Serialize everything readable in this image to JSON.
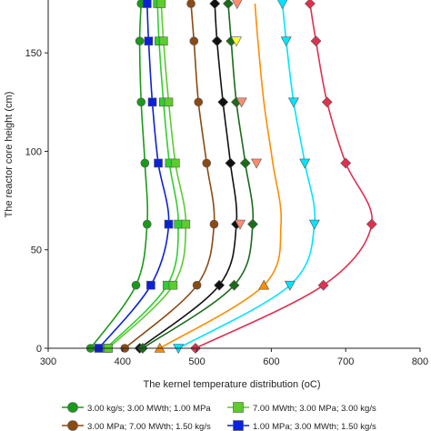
{
  "chart_data": {
    "type": "line",
    "xlabel": "The kernel temperature distribution (oC)",
    "ylabel": "The reactor core height (cm)",
    "xlim": [
      300,
      800
    ],
    "ylim": [
      0,
      175
    ],
    "xticks": [
      "300",
      "400",
      "500",
      "600",
      "700",
      "800"
    ],
    "yticks": [
      "0",
      "50",
      "100",
      "150"
    ],
    "grid": false,
    "legend_position": "bottom",
    "y": [
      0,
      32,
      63,
      94,
      125,
      156,
      175
    ],
    "series": [
      {
        "name": "3.00 kg/s; 3.00 MWth; 1.00 MPa",
        "color": "#1a9a1a",
        "marker": "circle",
        "x": [
          357,
          418,
          433,
          430,
          425,
          423,
          425
        ]
      },
      {
        "name": "",
        "color": "#32cd32",
        "marker": "square",
        "x": [
          378,
          460,
          475,
          463,
          455,
          449,
          447
        ]
      },
      {
        "name": "1.00 MPa; 3.00 MWth; 1.50 kg/s",
        "color": "#0b22d6",
        "marker": "square",
        "x": [
          368,
          438,
          462,
          448,
          440,
          435,
          433
        ]
      },
      {
        "name": "7.00 MWth; 3.00 MPa; 3.00 kg/s",
        "color": "#5ccc2e",
        "marker": "square",
        "x": [
          381,
          468,
          485,
          471,
          462,
          455,
          452
        ]
      },
      {
        "name": "3.00 MPa; 7.00 MWth; 1.50 kg/s",
        "color": "#8b4a14",
        "marker": "circle",
        "x": [
          403,
          500,
          523,
          513,
          502,
          496,
          492
        ]
      },
      {
        "name": "",
        "color": "#111111",
        "marker": "diamond",
        "x": [
          423,
          530,
          553,
          545,
          535,
          527,
          524
        ]
      },
      {
        "name": "",
        "color": "#1a6b1a",
        "marker": "diamond",
        "x": [
          427,
          550,
          575,
          565,
          553,
          546,
          542
        ]
      },
      {
        "name": "",
        "color": "#ff8c00",
        "marker": "triangle",
        "x": [
          450,
          590,
          613,
          602,
          590,
          582,
          578
        ]
      },
      {
        "name": "",
        "color": "#00e5ff",
        "marker": "triangle-down",
        "x": [
          475,
          625,
          658,
          645,
          630,
          620,
          615
        ]
      },
      {
        "name": "",
        "color": "#e03050",
        "marker": "diamond",
        "x": [
          498,
          670,
          735,
          700,
          675,
          660,
          652
        ]
      }
    ],
    "markers_override": [
      {
        "series": 7,
        "index": 2,
        "x": 558,
        "y": 63,
        "marker": "triangle-down",
        "color": "#ff8c70"
      },
      {
        "series": 7,
        "index": 3,
        "x": 580,
        "y": 94,
        "marker": "triangle-down",
        "color": "#ff8c70"
      },
      {
        "series": 7,
        "index": 4,
        "x": 560,
        "y": 125,
        "marker": "triangle-down",
        "color": "#ff8c70"
      },
      {
        "series": 7,
        "index": 5,
        "x": 553,
        "y": 156,
        "marker": "triangle-down",
        "color": "#ffff33"
      },
      {
        "series": 7,
        "index": 6,
        "x": 554,
        "y": 175,
        "marker": "triangle-down",
        "color": "#ff8c70"
      }
    ]
  },
  "legend": {
    "items": [
      {
        "label": "3.00 kg/s; 3.00 MWth; 1.00 MPa",
        "color": "#1a9a1a",
        "marker": "circle"
      },
      {
        "label": "7.00 MWth; 3.00 MPa; 3.00 kg/s",
        "color": "#5ccc2e",
        "marker": "square"
      },
      {
        "label": "3.00 MPa; 7.00 MWth; 1.50 kg/s",
        "color": "#8b4a14",
        "marker": "circle"
      },
      {
        "label": "1.00 MPa; 3.00 MWth; 1.50 kg/s",
        "color": "#0b22d6",
        "marker": "square"
      }
    ]
  }
}
